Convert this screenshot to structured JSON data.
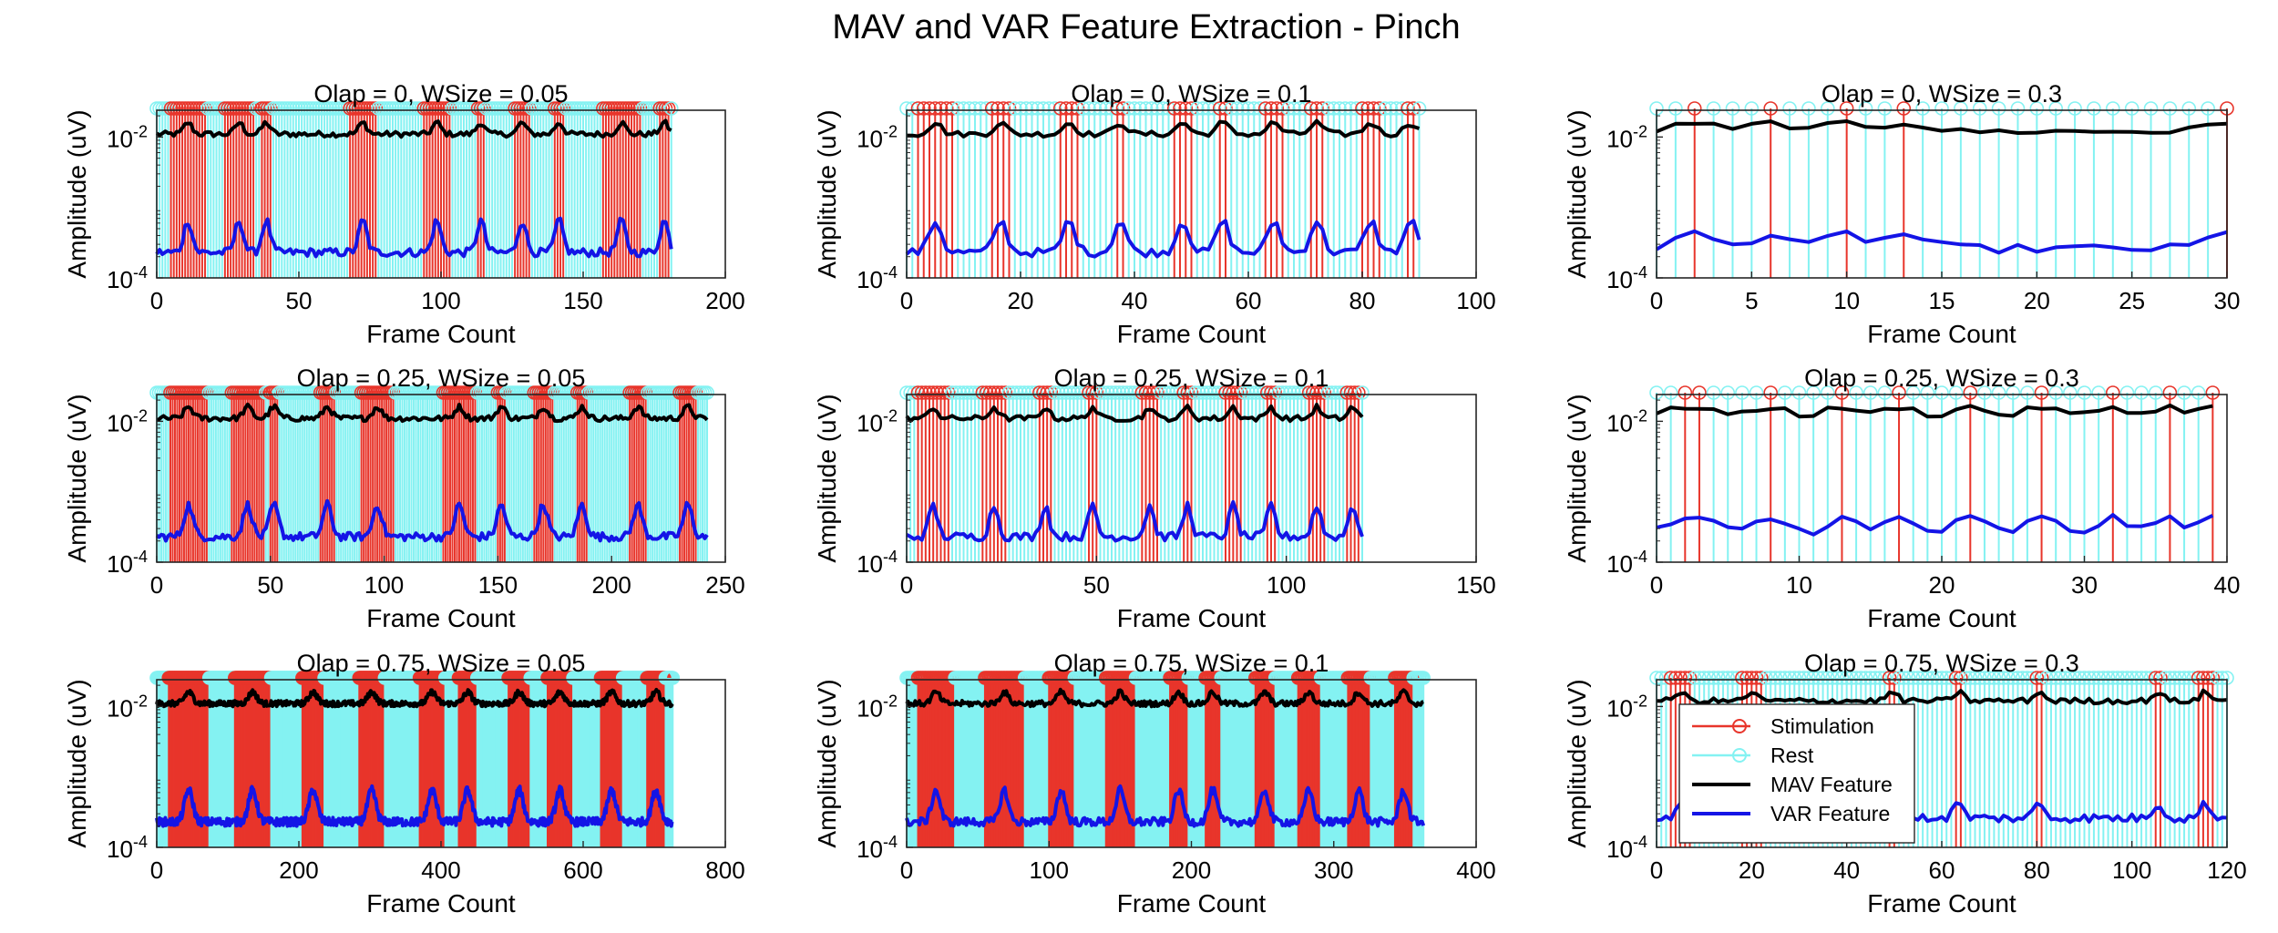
{
  "figure": {
    "suptitle": "MAV and VAR Feature Extraction - Pinch",
    "colors": {
      "stimulation": "#e8352b",
      "rest": "#84f2f2",
      "mav": "#000000",
      "var": "#1414e6"
    }
  },
  "chart_data": [
    {
      "type": "line",
      "title": "Olap = 0, WSize = 0.05",
      "xlabel": "Frame Count",
      "ylabel": "Amplitude (uV)",
      "xlim": [
        0,
        200
      ],
      "xticks": [
        "0",
        "50",
        "100",
        "150",
        "200"
      ],
      "yscale": "log",
      "ylim": [
        0.0001,
        0.024
      ],
      "yticks": [
        "10^-4",
        "10^-2"
      ],
      "frames": 182,
      "stim_stems": 66,
      "rest_stems": 116,
      "stim_bursts": [
        [
          5,
          17
        ],
        [
          24,
          34
        ],
        [
          37,
          40
        ],
        [
          68,
          77
        ],
        [
          94,
          103
        ],
        [
          113,
          115
        ],
        [
          126,
          131
        ],
        [
          140,
          143
        ],
        [
          157,
          170
        ],
        [
          177,
          180
        ]
      ],
      "series": [
        {
          "name": "MAV Feature",
          "baseline": 0.011,
          "peak": 0.016
        },
        {
          "name": "VAR Feature",
          "baseline": 0.00023,
          "peak": 0.00065
        }
      ]
    },
    {
      "type": "line",
      "title": "Olap = 0, WSize = 0.1",
      "xlabel": "Frame Count",
      "ylabel": "Amplitude (uV)",
      "xlim": [
        0,
        100
      ],
      "xticks": [
        "0",
        "20",
        "40",
        "60",
        "80",
        "100"
      ],
      "yscale": "log",
      "ylim": [
        0.0001,
        0.024
      ],
      "yticks": [
        "10^-4",
        "10^-2"
      ],
      "frames": 91,
      "stim_stems": 33,
      "rest_stems": 58,
      "stim_bursts": [
        [
          2,
          8
        ],
        [
          15,
          18
        ],
        [
          27,
          30
        ],
        [
          37,
          38
        ],
        [
          47,
          50
        ],
        [
          55,
          56
        ],
        [
          63,
          66
        ],
        [
          71,
          73
        ],
        [
          80,
          83
        ],
        [
          88,
          89
        ]
      ],
      "series": [
        {
          "name": "MAV Feature",
          "baseline": 0.011,
          "peak": 0.016
        },
        {
          "name": "VAR Feature",
          "baseline": 0.00023,
          "peak": 0.00065
        }
      ]
    },
    {
      "type": "line",
      "title": "Olap = 0, WSize = 0.3",
      "xlabel": "Frame Count",
      "ylabel": "Amplitude (uV)",
      "xlim": [
        0,
        30
      ],
      "xticks": [
        "0",
        "5",
        "10",
        "15",
        "20",
        "25",
        "30"
      ],
      "yscale": "log",
      "ylim": [
        0.0001,
        0.024
      ],
      "yticks": [
        "10^-4",
        "10^-2"
      ],
      "frames": 31,
      "stim_stems": 6,
      "rest_stems": 25,
      "stim_bursts": [
        [
          2,
          2
        ],
        [
          6,
          6
        ],
        [
          10,
          10
        ],
        [
          13,
          13
        ],
        [
          30,
          30
        ]
      ],
      "series": [
        {
          "name": "MAV Feature",
          "baseline": 0.012,
          "peak": 0.016
        },
        {
          "name": "VAR Feature",
          "baseline": 0.00026,
          "peak": 0.00042
        }
      ]
    },
    {
      "type": "line",
      "title": "Olap = 0.25, WSize = 0.05",
      "xlabel": "Frame Count",
      "ylabel": "Amplitude (uV)",
      "xlim": [
        0,
        250
      ],
      "xticks": [
        "0",
        "50",
        "100",
        "150",
        "200",
        "250"
      ],
      "yscale": "log",
      "ylim": [
        0.0001,
        0.024
      ],
      "yticks": [
        "10^-4",
        "10^-2"
      ],
      "frames": 243,
      "stim_stems": 88,
      "rest_stems": 155,
      "stim_bursts": [
        [
          6,
          22
        ],
        [
          33,
          47
        ],
        [
          50,
          53
        ],
        [
          72,
          78
        ],
        [
          90,
          104
        ],
        [
          126,
          140
        ],
        [
          150,
          153
        ],
        [
          166,
          174
        ],
        [
          185,
          189
        ],
        [
          208,
          215
        ],
        [
          230,
          237
        ]
      ],
      "series": [
        {
          "name": "MAV Feature",
          "baseline": 0.011,
          "peak": 0.016
        },
        {
          "name": "VAR Feature",
          "baseline": 0.00023,
          "peak": 0.00065
        }
      ]
    },
    {
      "type": "line",
      "title": "Olap = 0.25, WSize = 0.1",
      "xlabel": "Frame Count",
      "ylabel": "Amplitude (uV)",
      "xlim": [
        0,
        150
      ],
      "xticks": [
        "0",
        "50",
        "100",
        "150"
      ],
      "yscale": "log",
      "ylim": [
        0.0001,
        0.024
      ],
      "yticks": [
        "10^-4",
        "10^-2"
      ],
      "frames": 121,
      "stim_stems": 44,
      "rest_stems": 77,
      "stim_bursts": [
        [
          3,
          11
        ],
        [
          20,
          26
        ],
        [
          35,
          38
        ],
        [
          48,
          50
        ],
        [
          62,
          66
        ],
        [
          73,
          75
        ],
        [
          84,
          88
        ],
        [
          95,
          97
        ],
        [
          106,
          110
        ],
        [
          116,
          119
        ]
      ],
      "series": [
        {
          "name": "MAV Feature",
          "baseline": 0.011,
          "peak": 0.016
        },
        {
          "name": "VAR Feature",
          "baseline": 0.00023,
          "peak": 0.00065
        }
      ]
    },
    {
      "type": "line",
      "title": "Olap = 0.25, WSize = 0.3",
      "xlabel": "Frame Count",
      "ylabel": "Amplitude (uV)",
      "xlim": [
        0,
        40
      ],
      "xticks": [
        "0",
        "10",
        "20",
        "30",
        "40"
      ],
      "yscale": "log",
      "ylim": [
        0.0001,
        0.024
      ],
      "yticks": [
        "10^-4",
        "10^-2"
      ],
      "frames": 40,
      "stim_stems": 10,
      "rest_stems": 30,
      "stim_bursts": [
        [
          2,
          2
        ],
        [
          3,
          3
        ],
        [
          8,
          8
        ],
        [
          13,
          13
        ],
        [
          17,
          17
        ],
        [
          22,
          22
        ],
        [
          27,
          27
        ],
        [
          32,
          32
        ],
        [
          36,
          36
        ],
        [
          39,
          39
        ]
      ],
      "series": [
        {
          "name": "MAV Feature",
          "baseline": 0.012,
          "peak": 0.016
        },
        {
          "name": "VAR Feature",
          "baseline": 0.00026,
          "peak": 0.00042
        }
      ]
    },
    {
      "type": "line",
      "title": "Olap = 0.75, WSize = 0.05",
      "xlabel": "Frame Count",
      "ylabel": "Amplitude (uV)",
      "xlim": [
        0,
        800
      ],
      "xticks": [
        "0",
        "200",
        "400",
        "600",
        "800"
      ],
      "yscale": "log",
      "ylim": [
        0.0001,
        0.024
      ],
      "yticks": [
        "10^-4",
        "10^-2"
      ],
      "frames": 727,
      "stim_stems": 262,
      "rest_stems": 465,
      "stim_bursts": [
        [
          17,
          73
        ],
        [
          110,
          160
        ],
        [
          205,
          235
        ],
        [
          285,
          320
        ],
        [
          370,
          405
        ],
        [
          425,
          450
        ],
        [
          495,
          525
        ],
        [
          550,
          585
        ],
        [
          625,
          655
        ],
        [
          690,
          715
        ]
      ],
      "series": [
        {
          "name": "MAV Feature",
          "baseline": 0.011,
          "peak": 0.016
        },
        {
          "name": "VAR Feature",
          "baseline": 0.00023,
          "peak": 0.00065
        }
      ]
    },
    {
      "type": "line",
      "title": "Olap = 0.75, WSize = 0.1",
      "xlabel": "Frame Count",
      "ylabel": "Amplitude (uV)",
      "xlim": [
        0,
        400
      ],
      "xticks": [
        "0",
        "100",
        "200",
        "300",
        "400"
      ],
      "yscale": "log",
      "ylim": [
        0.0001,
        0.024
      ],
      "yticks": [
        "10^-4",
        "10^-2"
      ],
      "frames": 364,
      "stim_stems": 131,
      "rest_stems": 233,
      "stim_bursts": [
        [
          8,
          33
        ],
        [
          55,
          82
        ],
        [
          100,
          117
        ],
        [
          140,
          160
        ],
        [
          185,
          197
        ],
        [
          210,
          220
        ],
        [
          245,
          258
        ],
        [
          275,
          290
        ],
        [
          310,
          325
        ],
        [
          343,
          355
        ]
      ],
      "series": [
        {
          "name": "MAV Feature",
          "baseline": 0.011,
          "peak": 0.016
        },
        {
          "name": "VAR Feature",
          "baseline": 0.00023,
          "peak": 0.00065
        }
      ]
    },
    {
      "type": "line",
      "title": "Olap = 0.75, WSize = 0.3",
      "xlabel": "Frame Count",
      "ylabel": "Amplitude (uV)",
      "xlim": [
        0,
        120
      ],
      "xticks": [
        "0",
        "20",
        "40",
        "60",
        "80",
        "100",
        "120"
      ],
      "yscale": "log",
      "ylim": [
        0.0001,
        0.024
      ],
      "yticks": [
        "10^-4",
        "10^-2"
      ],
      "frames": 121,
      "stim_stems": 22,
      "rest_stems": 99,
      "stim_bursts": [
        [
          3,
          7
        ],
        [
          18,
          22
        ],
        [
          49,
          50
        ],
        [
          63,
          64
        ],
        [
          80,
          81
        ],
        [
          105,
          106
        ],
        [
          114,
          117
        ]
      ],
      "series": [
        {
          "name": "MAV Feature",
          "baseline": 0.012,
          "peak": 0.016
        },
        {
          "name": "VAR Feature",
          "baseline": 0.00026,
          "peak": 0.00042
        }
      ],
      "legend": {
        "location": "bottom-left",
        "entries": [
          "Stimulation",
          "Rest",
          "MAV Feature",
          "VAR Feature"
        ]
      }
    }
  ]
}
